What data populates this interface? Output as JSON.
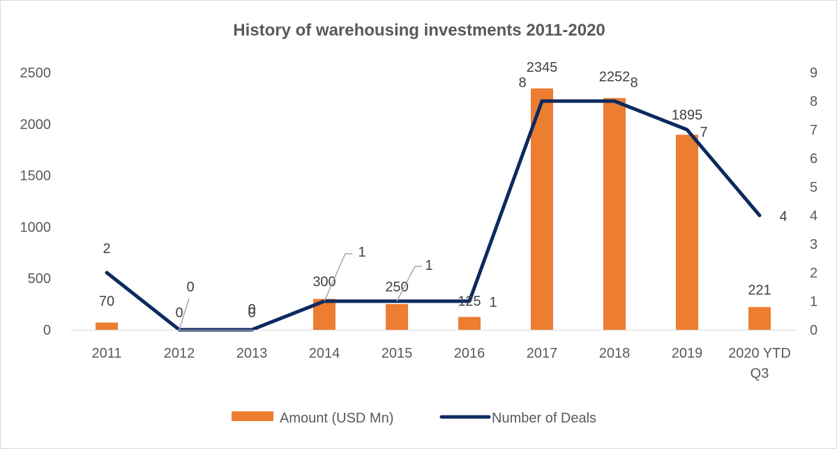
{
  "chart_data": {
    "type": "bar",
    "title": "History of warehousing investments 2011-2020",
    "categories": [
      [
        "2011"
      ],
      [
        "2012"
      ],
      [
        "2013"
      ],
      [
        "2014"
      ],
      [
        "2015"
      ],
      [
        "2016"
      ],
      [
        "2017"
      ],
      [
        "2018"
      ],
      [
        "2019"
      ],
      [
        "2020 YTD",
        "Q3"
      ]
    ],
    "series": [
      {
        "name": "Amount (USD Mn)",
        "type": "bar",
        "axis": "left",
        "color": "#ED7D31",
        "values": [
          70,
          0,
          0,
          300,
          250,
          125,
          2345,
          2252,
          1895,
          221
        ]
      },
      {
        "name": "Number of Deals",
        "type": "line",
        "axis": "right",
        "color": "#0D2A5E",
        "values": [
          2,
          0,
          0,
          1,
          1,
          1,
          8,
          8,
          7,
          4
        ]
      }
    ],
    "left_axis": {
      "min": 0,
      "max": 2500,
      "ticks": [
        0,
        500,
        1000,
        1500,
        2000,
        2500
      ]
    },
    "right_axis": {
      "min": 0,
      "max": 9,
      "ticks": [
        0,
        1,
        2,
        3,
        4,
        5,
        6,
        7,
        8,
        9
      ]
    },
    "grid": false,
    "legend_position": "bottom"
  }
}
